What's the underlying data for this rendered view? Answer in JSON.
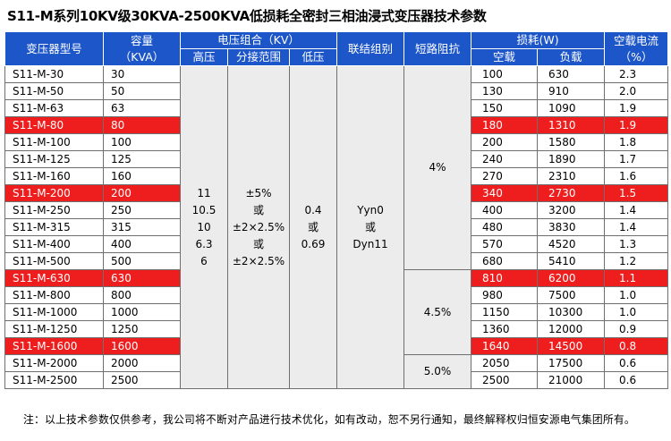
{
  "title": "S11-M系列10KV级30KVA-2500KVA低损耗全密封三相油浸式变压器技术参数",
  "header": {
    "model": "变压器型号",
    "capacity_l1": "容量",
    "capacity_l2": "（KVA）",
    "voltage_group": "电压组合（KV）",
    "hv": "高压",
    "tap_range": "分接范围",
    "lv": "低压",
    "connection": "联结组别",
    "impedance": "短路阻抗",
    "loss_group": "损耗(W)",
    "no_load": "空载",
    "load": "负载",
    "current_l1": "空载电流",
    "current_l2": "（%）"
  },
  "merged": {
    "hv": "11\n10.5\n10\n6.3\n6",
    "tap": "±5%\n或\n±2×2.5%\n或\n±2×2.5%",
    "lv": "0.4\n或\n0.69",
    "connection": "Yyn0\n或\nDyn11",
    "imp_a": "4%",
    "imp_b": "4.5%",
    "imp_c": "5.0%"
  },
  "rows": [
    {
      "model": "S11-M-30",
      "cap": "30",
      "nl": "100",
      "ld": "630",
      "cur": "2.3",
      "hl": false
    },
    {
      "model": "S11-M-50",
      "cap": "50",
      "nl": "130",
      "ld": "910",
      "cur": "2.0",
      "hl": false
    },
    {
      "model": "S11-M-63",
      "cap": "63",
      "nl": "150",
      "ld": "1090",
      "cur": "1.9",
      "hl": false
    },
    {
      "model": "S11-M-80",
      "cap": "80",
      "nl": "180",
      "ld": "1310",
      "cur": "1.9",
      "hl": true
    },
    {
      "model": "S11-M-100",
      "cap": "100",
      "nl": "200",
      "ld": "1580",
      "cur": "1.8",
      "hl": false
    },
    {
      "model": "S11-M-125",
      "cap": "125",
      "nl": "240",
      "ld": "1890",
      "cur": "1.7",
      "hl": false
    },
    {
      "model": "S11-M-160",
      "cap": "160",
      "nl": "270",
      "ld": "2310",
      "cur": "1.6",
      "hl": false
    },
    {
      "model": "S11-M-200",
      "cap": "200",
      "nl": "340",
      "ld": "2730",
      "cur": "1.5",
      "hl": true
    },
    {
      "model": "S11-M-250",
      "cap": "250",
      "nl": "400",
      "ld": "3200",
      "cur": "1.4",
      "hl": false
    },
    {
      "model": "S11-M-315",
      "cap": "315",
      "nl": "480",
      "ld": "3830",
      "cur": "1.4",
      "hl": false
    },
    {
      "model": "S11-M-400",
      "cap": "400",
      "nl": "570",
      "ld": "4520",
      "cur": "1.3",
      "hl": false
    },
    {
      "model": "S11-M-500",
      "cap": "500",
      "nl": "680",
      "ld": "5410",
      "cur": "1.2",
      "hl": false
    },
    {
      "model": "S11-M-630",
      "cap": "630",
      "nl": "810",
      "ld": "6200",
      "cur": "1.1",
      "hl": true
    },
    {
      "model": "S11-M-800",
      "cap": "800",
      "nl": "980",
      "ld": "7500",
      "cur": "1.0",
      "hl": false
    },
    {
      "model": "S11-M-1000",
      "cap": "1000",
      "nl": "1150",
      "ld": "10300",
      "cur": "1.0",
      "hl": false
    },
    {
      "model": "S11-M-1250",
      "cap": "1250",
      "nl": "1360",
      "ld": "12000",
      "cur": "0.9",
      "hl": false
    },
    {
      "model": "S11-M-1600",
      "cap": "1600",
      "nl": "1640",
      "ld": "14500",
      "cur": "0.8",
      "hl": true
    },
    {
      "model": "S11-M-2000",
      "cap": "2000",
      "nl": "2050",
      "ld": "17500",
      "cur": "0.6",
      "hl": false
    },
    {
      "model": "S11-M-2500",
      "cap": "2500",
      "nl": "2500",
      "ld": "21000",
      "cur": "0.6",
      "hl": false
    }
  ],
  "note": "注：以上技术参数仅供参考，我公司将不断对产品进行技术优化，如有改动，恕不另行通知，最终解释权归恒安源电气集团所有。",
  "colors": {
    "header": "#1d56c8",
    "highlight": "#ee1e1e",
    "merged_bg": "#ececec"
  }
}
